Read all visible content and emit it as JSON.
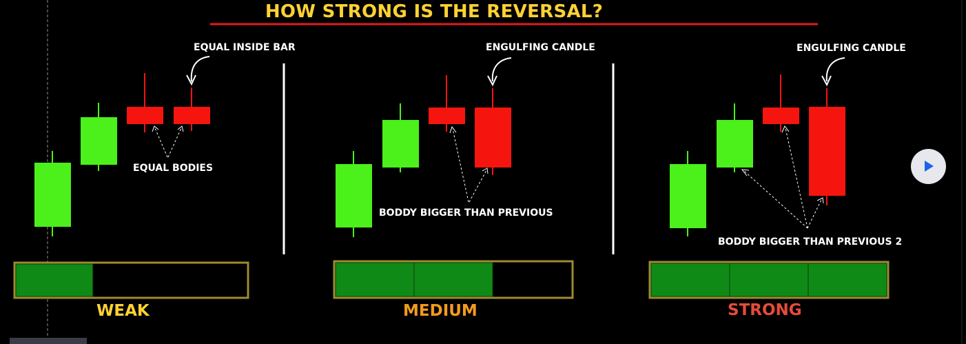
{
  "title": "HOW STRONG IS THE REVERSAL?",
  "colors": {
    "title": "#FFD233",
    "underline": "#E01B1B",
    "bullish": "#4CF01A",
    "bearish": "#F5150E",
    "meter_fill": "#0F8A16",
    "meter_border": "#9E8A2E",
    "weak": "#FFD233",
    "medium": "#F39A1E",
    "strong": "#E64B3C"
  },
  "panels": [
    {
      "annotation_top": "EQUAL INSIDE BAR",
      "annotation_bottom": "EQUAL BODIES",
      "level_label": "WEAK",
      "meter": {
        "filled": 1,
        "total": 3
      }
    },
    {
      "annotation_top": "ENGULFING CANDLE",
      "annotation_bottom": "BODDY BIGGER THAN PREVIOUS",
      "level_label": "MEDIUM",
      "meter": {
        "filled": 2,
        "total": 3
      }
    },
    {
      "annotation_top": "ENGULFING CANDLE",
      "annotation_bottom": "BODDY BIGGER THAN PREVIOUS 2",
      "level_label": "STRONG",
      "meter": {
        "filled": 3,
        "total": 3
      }
    }
  ],
  "controls": {
    "play_icon": "play-icon"
  }
}
